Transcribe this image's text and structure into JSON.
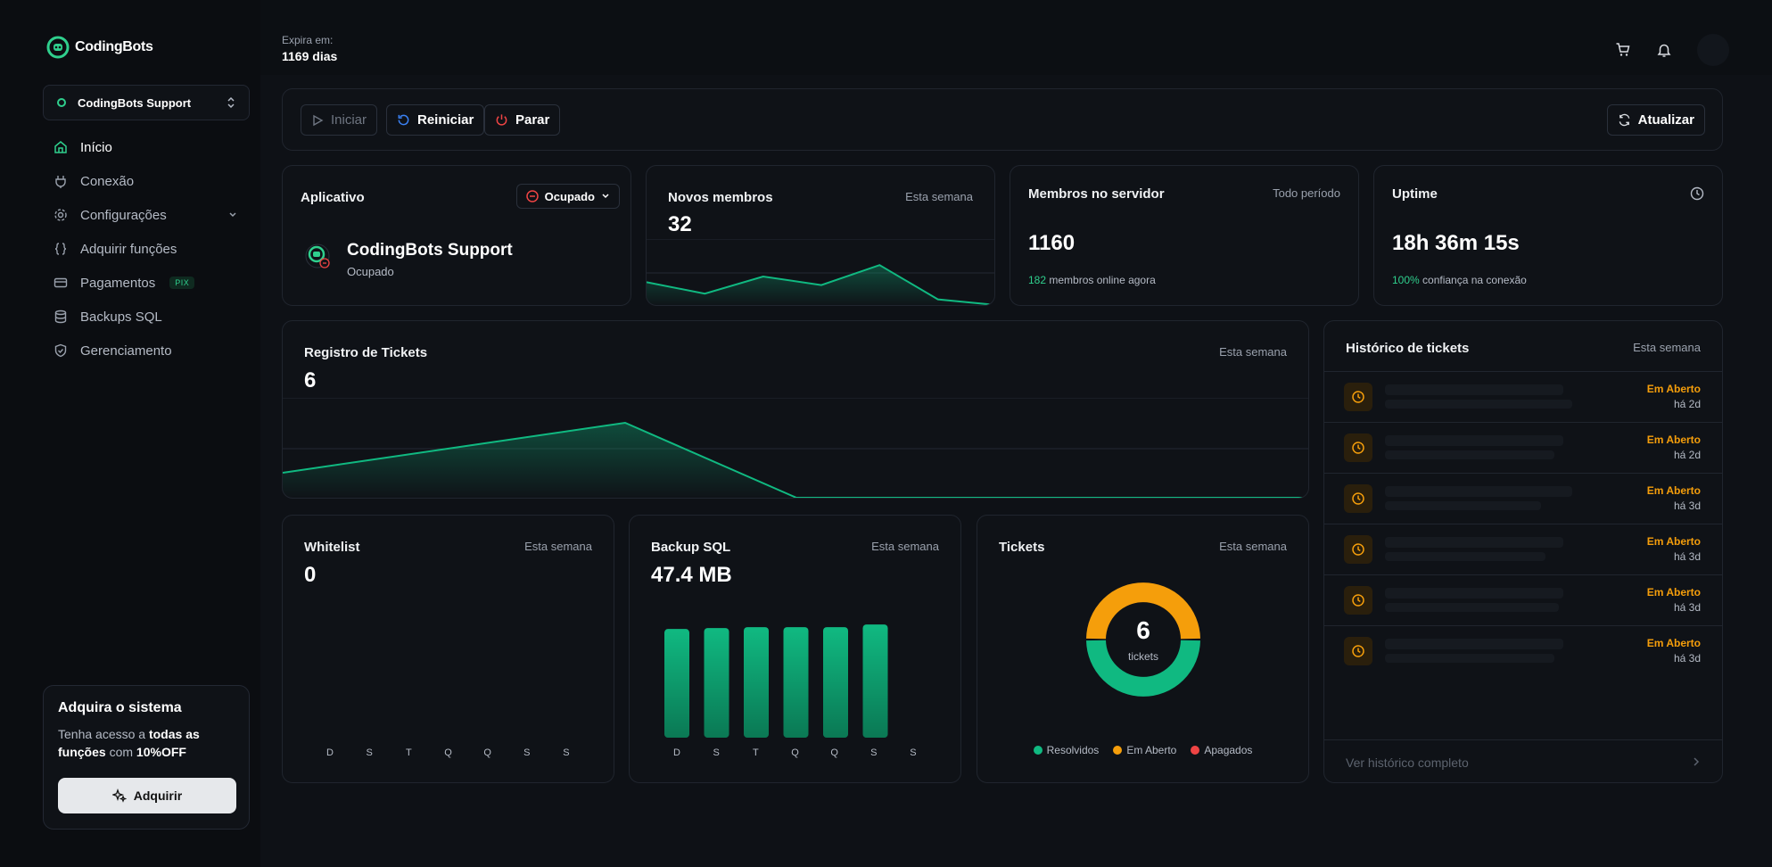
{
  "brand": {
    "name": "CodingBots"
  },
  "workspace": {
    "name": "CodingBots Support"
  },
  "nav": [
    {
      "label": "Início",
      "icon": "home-icon"
    },
    {
      "label": "Conexão",
      "icon": "plug-icon"
    },
    {
      "label": "Configurações",
      "icon": "gear-icon"
    },
    {
      "label": "Adquirir funções",
      "icon": "braces-icon"
    },
    {
      "label": "Pagamentos",
      "icon": "credit-card-icon",
      "badge": "PIX"
    },
    {
      "label": "Backups SQL",
      "icon": "database-icon"
    },
    {
      "label": "Gerenciamento",
      "icon": "shield-check-icon"
    }
  ],
  "promo": {
    "title": "Adquira o sistema",
    "text_a": "Tenha acesso a ",
    "text_b": "todas as funções",
    "text_c": " com ",
    "text_d": "10%OFF",
    "button": "Adquirir"
  },
  "header": {
    "expire_label": "Expira em:",
    "expire_value": "1169 dias"
  },
  "toolbar": {
    "start": "Iniciar",
    "restart": "Reiniciar",
    "stop": "Parar",
    "refresh": "Atualizar"
  },
  "app_card": {
    "title": "Aplicativo",
    "status_label": "Ocupado",
    "bot_name": "CodingBots Support",
    "bot_status": "Ocupado"
  },
  "new_members": {
    "title": "Novos membros",
    "period": "Esta semana",
    "value": "32",
    "chart_data": {
      "type": "area",
      "values": [
        8,
        4,
        10,
        7,
        14,
        2,
        0
      ],
      "ylim": [
        0,
        20
      ]
    }
  },
  "server_members": {
    "title": "Membros no servidor",
    "period": "Todo período",
    "value": "1160",
    "online_count": "182",
    "online_text": " membros online agora"
  },
  "uptime": {
    "title": "Uptime",
    "value": "18h 36m 15s",
    "confidence": "100%",
    "confidence_text": " confiança na conexão"
  },
  "tickets_log": {
    "title": "Registro de Tickets",
    "period": "Esta semana",
    "value": "6",
    "chart_data": {
      "type": "area",
      "values": [
        2,
        4,
        6,
        0,
        0,
        0,
        0
      ],
      "ylim": [
        0,
        8
      ]
    }
  },
  "history": {
    "title": "Histórico de tickets",
    "period": "Esta semana",
    "footer": "Ver histórico completo",
    "rows": [
      {
        "status": "Em Aberto",
        "time": "há 2d"
      },
      {
        "status": "Em Aberto",
        "time": "há 2d"
      },
      {
        "status": "Em Aberto",
        "time": "há 3d"
      },
      {
        "status": "Em Aberto",
        "time": "há 3d"
      },
      {
        "status": "Em Aberto",
        "time": "há 3d"
      },
      {
        "status": "Em Aberto",
        "time": "há 3d"
      }
    ]
  },
  "whitelist": {
    "title": "Whitelist",
    "period": "Esta semana",
    "value": "0",
    "chart_data": {
      "type": "bar",
      "categories": [
        "D",
        "S",
        "T",
        "Q",
        "Q",
        "S",
        "S"
      ],
      "values": [
        0,
        0,
        0,
        0,
        0,
        0,
        0
      ]
    }
  },
  "backup": {
    "title": "Backup SQL",
    "period": "Esta semana",
    "value": "47.4 MB",
    "chart_data": {
      "type": "bar",
      "categories": [
        "D",
        "S",
        "T",
        "Q",
        "Q",
        "S",
        "S"
      ],
      "values": [
        120,
        121,
        122,
        122,
        122,
        125,
        0
      ],
      "ylim": [
        0,
        130
      ]
    }
  },
  "tickets": {
    "title": "Tickets",
    "period": "Esta semana",
    "value": "6",
    "unit": "tickets",
    "chart_data": {
      "type": "pie",
      "labels": [
        "Resolvidos",
        "Em Aberto",
        "Apagados"
      ],
      "values": [
        3,
        3,
        0
      ],
      "colors": [
        "#10b981",
        "#f59e0b",
        "#ef4444"
      ]
    }
  },
  "colors": {
    "accent": "#10b981",
    "warning": "#f59e0b",
    "danger": "#ef4444",
    "info": "#3b82f6"
  }
}
